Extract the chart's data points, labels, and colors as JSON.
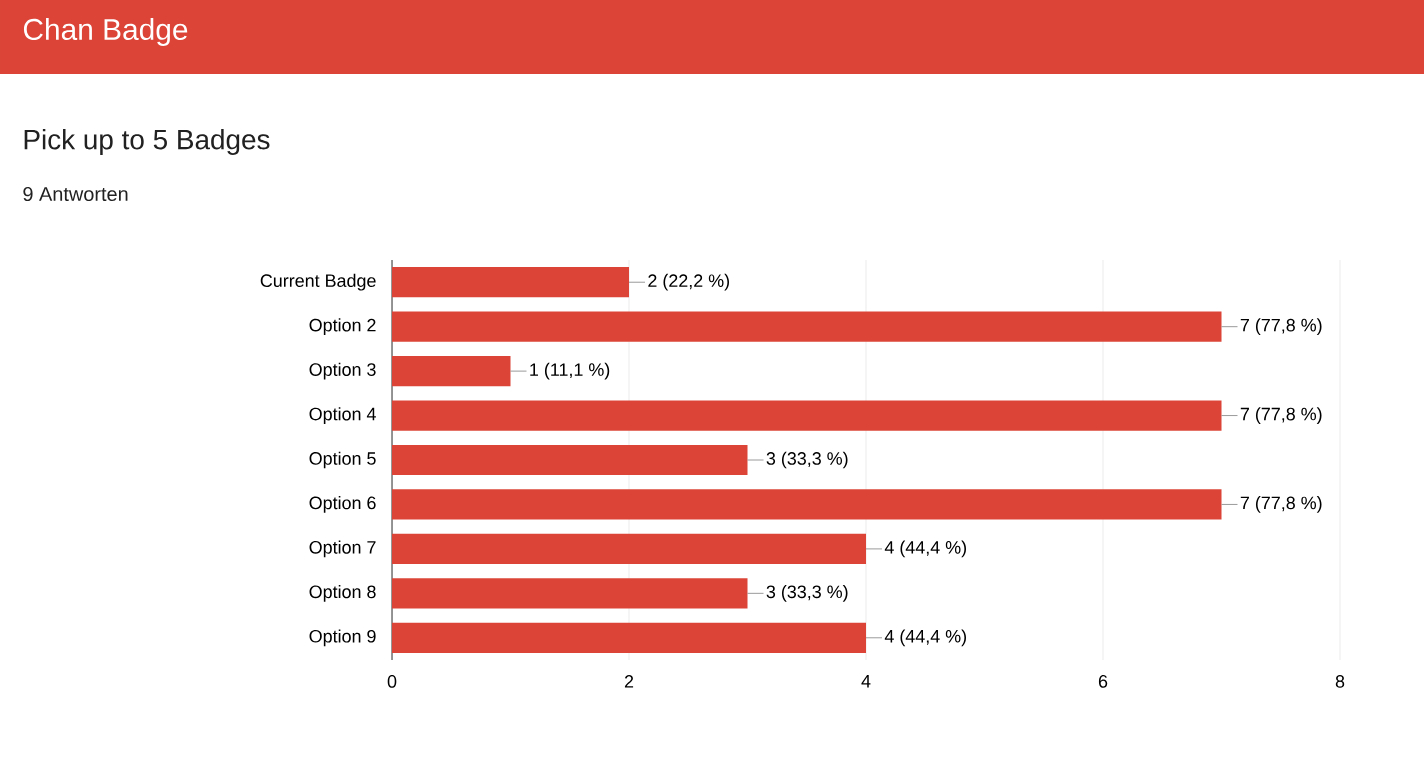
{
  "chart_data": {
    "type": "bar",
    "orientation": "horizontal",
    "title": "Chan Badge",
    "subtitle": "Pick up to 5 Badges",
    "annotations": [
      "9 Antworten"
    ],
    "categories": [
      "Current Badge",
      "Option 2",
      "Option 3",
      "Option 4",
      "Option 5",
      "Option 6",
      "Option 7",
      "Option 8",
      "Option 9"
    ],
    "values": [
      2,
      7,
      1,
      7,
      3,
      7,
      4,
      3,
      4
    ],
    "value_labels": [
      "2 (22,2 %)",
      "7 (77,8 %)",
      "1 (11,1 %)",
      "7 (77,8 %)",
      "3 (33,3 %)",
      "7 (77,8 %)",
      "4 (44,4 %)",
      "3 (33,3 %)",
      "4 (44,4 %)"
    ],
    "color": "#db4437",
    "xlim": [
      0,
      8
    ],
    "xticks": [
      0,
      2,
      4,
      6,
      8
    ],
    "grid": "x"
  }
}
